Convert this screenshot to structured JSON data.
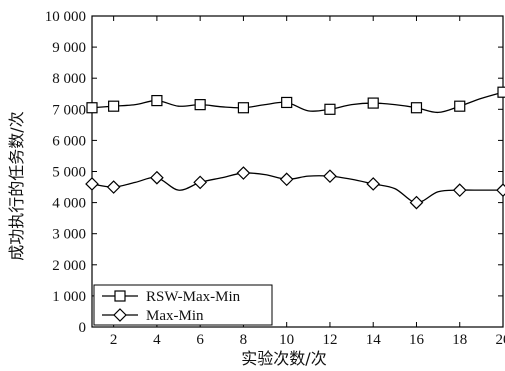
{
  "chart_data": {
    "type": "line",
    "title": "",
    "xlabel": "实验次数/次",
    "ylabel": "成功执行的任务数/次",
    "xlim": [
      1,
      20
    ],
    "ylim": [
      0,
      10000
    ],
    "xticks": [
      "2",
      "4",
      "6",
      "8",
      "10",
      "12",
      "14",
      "16",
      "18",
      "20"
    ],
    "yticks": [
      "0",
      "1 000",
      "2 000",
      "3 000",
      "4 000",
      "5 000",
      "6 000",
      "7 000",
      "8 000",
      "9 000",
      "10 000"
    ],
    "grid": false,
    "legend_position": "bottom-left",
    "series": [
      {
        "name": "RSW-Max-Min",
        "marker": "square",
        "x": [
          1,
          2,
          3,
          4,
          5,
          6,
          7,
          8,
          9,
          10,
          11,
          12,
          13,
          14,
          15,
          16,
          17,
          18,
          19,
          20
        ],
        "values": [
          7050,
          7100,
          7150,
          7280,
          7100,
          7150,
          7080,
          7050,
          7150,
          7220,
          6950,
          7000,
          7150,
          7200,
          7150,
          7050,
          6900,
          7100,
          7350,
          7550
        ]
      },
      {
        "name": "Max-Min",
        "marker": "diamond",
        "x": [
          1,
          2,
          3,
          4,
          5,
          6,
          7,
          8,
          9,
          10,
          11,
          12,
          13,
          14,
          15,
          16,
          17,
          18,
          19,
          20
        ],
        "values": [
          4600,
          4500,
          4650,
          4800,
          4400,
          4650,
          4800,
          4950,
          4900,
          4750,
          4850,
          4850,
          4750,
          4600,
          4450,
          4000,
          4350,
          4400,
          4400,
          4400
        ]
      }
    ],
    "marker_x": [
      2,
      4,
      6,
      8,
      10,
      12,
      14,
      16,
      18,
      20
    ],
    "marker_x_extra_start": 1
  }
}
